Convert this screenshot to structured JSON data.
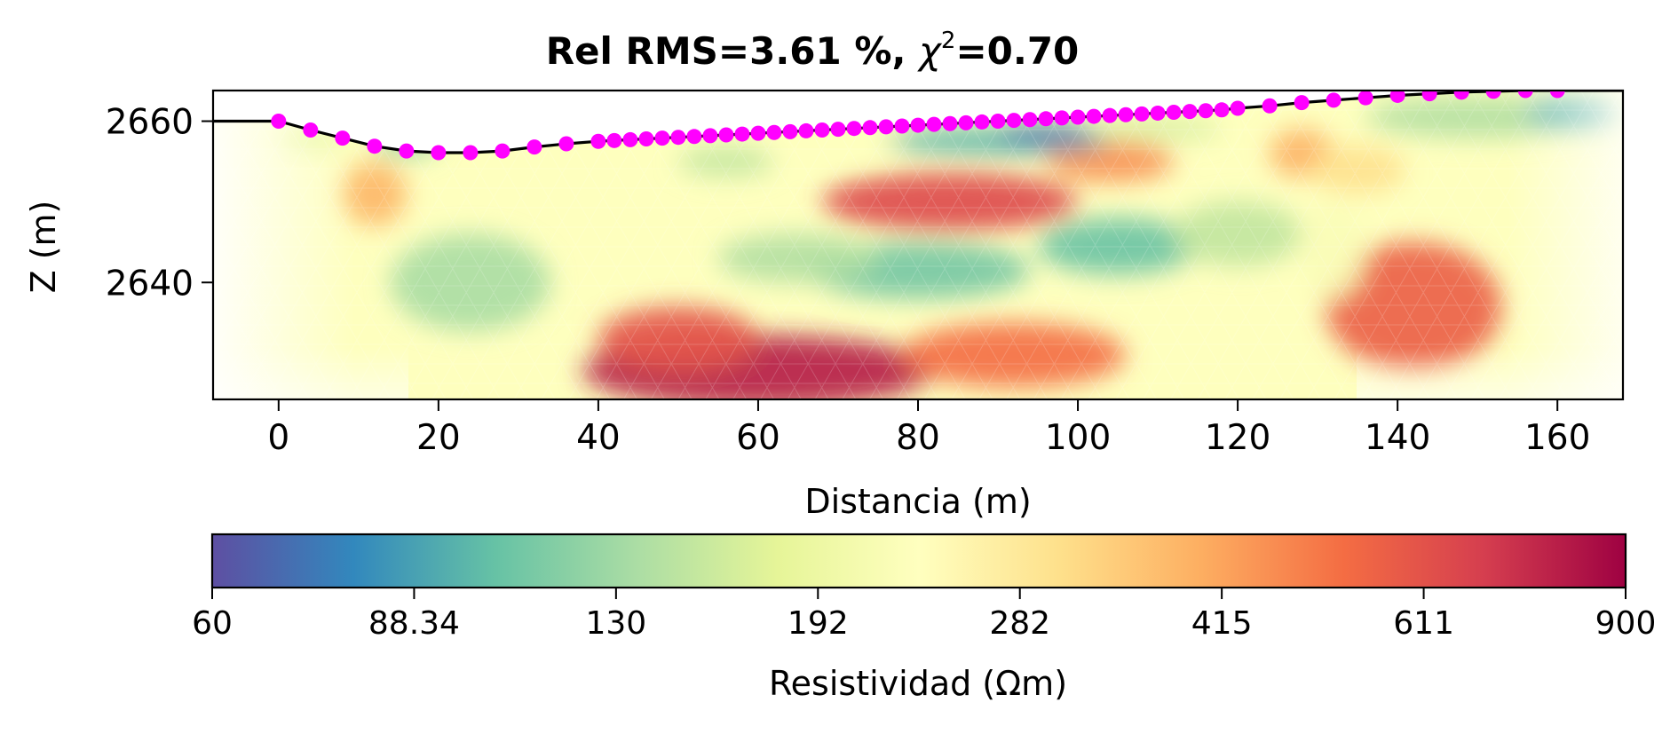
{
  "chart_data": {
    "type": "heatmap",
    "title": {
      "prefix": "Rel RMS=",
      "rms": "3.61",
      "rms_unit": " %, ",
      "chi_symbol": "χ",
      "chi_exponent": "2",
      "chi_value": "=0.70"
    },
    "xlabel": "Distancia (m)",
    "ylabel": "Z (m)",
    "xlim": [
      -8.2,
      168.2
    ],
    "ylim": [
      2625.5,
      2663.8
    ],
    "x_ticks": [
      0,
      20,
      40,
      60,
      80,
      100,
      120,
      140,
      160
    ],
    "y_ticks": [
      2640,
      2660
    ],
    "electrodes": {
      "color": "#ff00ff",
      "x": [
        0,
        4,
        8,
        12,
        16,
        20,
        24,
        28,
        32,
        36,
        40,
        42,
        44,
        46,
        48,
        50,
        52,
        54,
        56,
        58,
        60,
        62,
        64,
        66,
        68,
        70,
        72,
        74,
        76,
        78,
        80,
        82,
        84,
        86,
        88,
        90,
        92,
        94,
        96,
        98,
        100,
        102,
        104,
        106,
        108,
        110,
        112,
        114,
        116,
        118,
        120,
        124,
        128,
        132,
        136,
        140,
        144,
        148,
        152,
        156,
        160
      ],
      "z": [
        2660.0,
        2658.9,
        2657.9,
        2656.9,
        2656.3,
        2656.1,
        2656.1,
        2656.3,
        2656.8,
        2657.2,
        2657.5,
        2657.6,
        2657.7,
        2657.8,
        2657.9,
        2658.0,
        2658.1,
        2658.2,
        2658.3,
        2658.4,
        2658.5,
        2658.6,
        2658.7,
        2658.8,
        2658.9,
        2659.0,
        2659.1,
        2659.2,
        2659.3,
        2659.4,
        2659.5,
        2659.6,
        2659.7,
        2659.8,
        2659.9,
        2660.0,
        2660.1,
        2660.2,
        2660.3,
        2660.4,
        2660.5,
        2660.6,
        2660.7,
        2660.8,
        2660.9,
        2661.0,
        2661.1,
        2661.2,
        2661.3,
        2661.4,
        2661.6,
        2661.9,
        2662.3,
        2662.6,
        2662.9,
        2663.2,
        2663.4,
        2663.6,
        2663.7,
        2663.8,
        2663.8
      ]
    },
    "surface_extension": {
      "left": [
        -8.2,
        2660.0
      ],
      "right": [
        168.2,
        2663.8
      ]
    },
    "colorbar": {
      "label": "Resistividad (Ωm)",
      "colormap": "Spectral_r",
      "scale": "log",
      "range": [
        60,
        900
      ],
      "tick_labels": [
        "60",
        "88.34",
        "130",
        "192",
        "282",
        "415",
        "611",
        "900"
      ],
      "colors": [
        "#5e4fa2",
        "#3288bd",
        "#66c2a5",
        "#abdda4",
        "#e6f598",
        "#ffffbf",
        "#fee08b",
        "#fdae61",
        "#f46d43",
        "#d53e4f",
        "#9e0142"
      ]
    },
    "resistivity_features": [
      {
        "x": 12,
        "z": 2651,
        "rx": 4,
        "rz": 4,
        "value": 380
      },
      {
        "x": 24,
        "z": 2640,
        "rx": 10,
        "rz": 6,
        "value": 135
      },
      {
        "x": 84,
        "z": 2650,
        "rx": 16,
        "rz": 3.6,
        "value": 640
      },
      {
        "x": 104,
        "z": 2655,
        "rx": 8,
        "rz": 2.5,
        "value": 450
      },
      {
        "x": 70,
        "z": 2657.5,
        "rx": 10,
        "rz": 1.5,
        "value": 230
      },
      {
        "x": 90,
        "z": 2657.5,
        "rx": 14,
        "rz": 1.6,
        "value": 95
      },
      {
        "x": 96,
        "z": 2658.3,
        "rx": 6,
        "rz": 1.2,
        "value": 70
      },
      {
        "x": 80,
        "z": 2641.5,
        "rx": 14,
        "rz": 3.5,
        "value": 110
      },
      {
        "x": 105,
        "z": 2644.5,
        "rx": 10,
        "rz": 3.5,
        "value": 105
      },
      {
        "x": 120,
        "z": 2646,
        "rx": 8,
        "rz": 4,
        "value": 150
      },
      {
        "x": 65,
        "z": 2643,
        "rx": 10,
        "rz": 3,
        "value": 140
      },
      {
        "x": 56,
        "z": 2655,
        "rx": 6,
        "rz": 1.8,
        "value": 150
      },
      {
        "x": 4,
        "z": 2657.8,
        "rx": 4,
        "rz": 1.5,
        "value": 180
      },
      {
        "x": 16,
        "z": 2657,
        "rx": 4,
        "rz": 1.2,
        "value": 120
      },
      {
        "x": 60,
        "z": 2629,
        "rx": 22,
        "rz": 4.5,
        "value": 800
      },
      {
        "x": 50,
        "z": 2633,
        "rx": 10,
        "rz": 4,
        "value": 600
      },
      {
        "x": 92,
        "z": 2631,
        "rx": 14,
        "rz": 4,
        "value": 520
      },
      {
        "x": 128,
        "z": 2656,
        "rx": 4,
        "rz": 3,
        "value": 390
      },
      {
        "x": 135,
        "z": 2654,
        "rx": 6,
        "rz": 3,
        "value": 300
      },
      {
        "x": 142,
        "z": 2637,
        "rx": 11,
        "rz": 8,
        "value": 560
      },
      {
        "x": 150,
        "z": 2660.5,
        "rx": 14,
        "rz": 2.5,
        "value": 140
      },
      {
        "x": 162,
        "z": 2661,
        "rx": 6,
        "rz": 2,
        "value": 95
      },
      {
        "x": 110,
        "z": 2659,
        "rx": 8,
        "rz": 1.2,
        "value": 160
      },
      {
        "x": 132,
        "z": 2644,
        "rx": 4,
        "rz": 6,
        "value": 220
      }
    ]
  }
}
